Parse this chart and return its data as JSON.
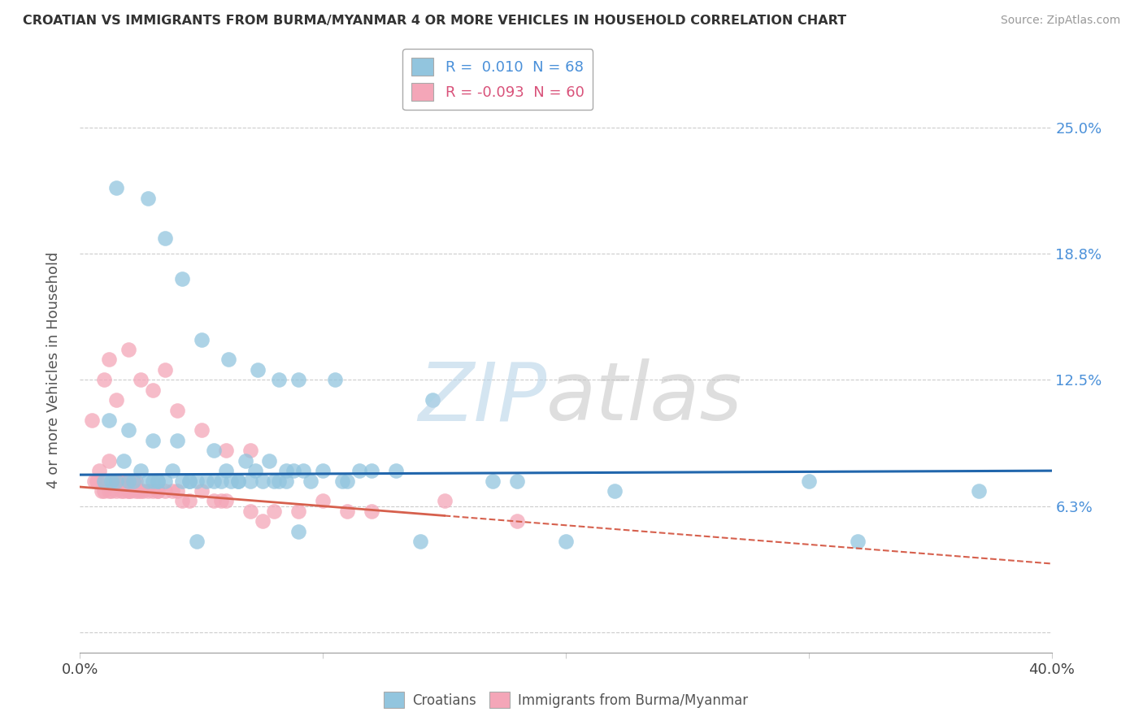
{
  "title": "CROATIAN VS IMMIGRANTS FROM BURMA/MYANMAR 4 OR MORE VEHICLES IN HOUSEHOLD CORRELATION CHART",
  "source": "Source: ZipAtlas.com",
  "ylabel": "4 or more Vehicles in Household",
  "xlim": [
    0.0,
    40.0
  ],
  "ylim": [
    -1.0,
    27.0
  ],
  "ytick_vals": [
    0.0,
    6.25,
    12.5,
    18.75,
    25.0
  ],
  "ytick_labels": [
    "",
    "6.3%",
    "12.5%",
    "18.8%",
    "25.0%"
  ],
  "legend_blue_R": "0.010",
  "legend_blue_N": "68",
  "legend_pink_R": "-0.093",
  "legend_pink_N": "60",
  "color_blue": "#92c5de",
  "color_pink": "#f4a6b8",
  "color_blue_line": "#2166ac",
  "color_pink_line": "#d6604d",
  "color_blue_text": "#4a90d9",
  "color_pink_text": "#d9527a",
  "blue_line_y_intercept": 7.8,
  "blue_line_slope": 0.005,
  "pink_line_y_intercept": 7.2,
  "pink_line_slope": -0.095,
  "scatter_blue_x": [
    1.5,
    2.8,
    3.5,
    4.2,
    5.0,
    6.1,
    7.3,
    8.2,
    9.0,
    10.5,
    1.2,
    2.0,
    3.0,
    4.0,
    5.5,
    6.8,
    7.8,
    8.8,
    10.0,
    11.5,
    1.8,
    2.5,
    3.8,
    4.8,
    5.2,
    6.5,
    7.5,
    8.5,
    9.5,
    12.0,
    1.0,
    2.2,
    3.2,
    4.5,
    5.8,
    6.2,
    7.0,
    8.0,
    9.2,
    13.0,
    1.3,
    2.8,
    3.5,
    4.2,
    5.5,
    7.2,
    8.5,
    10.8,
    14.5,
    18.0,
    2.0,
    3.0,
    4.5,
    6.0,
    8.2,
    11.0,
    17.0,
    22.0,
    30.0,
    37.0,
    1.5,
    3.2,
    4.8,
    6.5,
    9.0,
    14.0,
    20.0,
    32.0
  ],
  "scatter_blue_y": [
    22.0,
    21.5,
    19.5,
    17.5,
    14.5,
    13.5,
    13.0,
    12.5,
    12.5,
    12.5,
    10.5,
    10.0,
    9.5,
    9.5,
    9.0,
    8.5,
    8.5,
    8.0,
    8.0,
    8.0,
    8.5,
    8.0,
    8.0,
    7.5,
    7.5,
    7.5,
    7.5,
    7.5,
    7.5,
    8.0,
    7.5,
    7.5,
    7.5,
    7.5,
    7.5,
    7.5,
    7.5,
    7.5,
    8.0,
    8.0,
    7.5,
    7.5,
    7.5,
    7.5,
    7.5,
    8.0,
    8.0,
    7.5,
    11.5,
    7.5,
    7.5,
    7.5,
    7.5,
    8.0,
    7.5,
    7.5,
    7.5,
    7.0,
    7.5,
    7.0,
    7.5,
    7.5,
    4.5,
    7.5,
    5.0,
    4.5,
    4.5,
    4.5
  ],
  "scatter_pink_x": [
    0.5,
    0.8,
    1.0,
    1.2,
    1.4,
    1.6,
    1.8,
    2.0,
    2.2,
    2.4,
    0.6,
    0.9,
    1.1,
    1.3,
    1.5,
    1.7,
    1.9,
    2.1,
    2.3,
    2.5,
    0.7,
    1.0,
    1.2,
    1.5,
    1.8,
    2.0,
    2.3,
    2.6,
    2.8,
    3.0,
    3.2,
    3.5,
    3.8,
    4.0,
    4.5,
    5.0,
    5.5,
    6.0,
    7.0,
    8.0,
    9.0,
    10.0,
    12.0,
    15.0,
    18.0,
    3.2,
    4.2,
    5.8,
    7.5,
    11.0,
    1.5,
    2.5,
    3.5,
    1.2,
    2.0,
    3.0,
    4.0,
    5.0,
    6.0,
    7.0
  ],
  "scatter_pink_y": [
    10.5,
    8.0,
    12.5,
    8.5,
    7.5,
    7.5,
    7.5,
    7.0,
    7.5,
    7.0,
    7.5,
    7.0,
    7.5,
    7.0,
    7.5,
    7.0,
    7.5,
    7.0,
    7.5,
    7.0,
    7.5,
    7.0,
    7.0,
    7.0,
    7.0,
    7.0,
    7.0,
    7.0,
    7.0,
    7.0,
    7.0,
    7.0,
    7.0,
    7.0,
    6.5,
    7.0,
    6.5,
    6.5,
    6.0,
    6.0,
    6.0,
    6.5,
    6.0,
    6.5,
    5.5,
    7.0,
    6.5,
    6.5,
    5.5,
    6.0,
    11.5,
    12.5,
    13.0,
    13.5,
    14.0,
    12.0,
    11.0,
    10.0,
    9.0,
    9.0
  ]
}
